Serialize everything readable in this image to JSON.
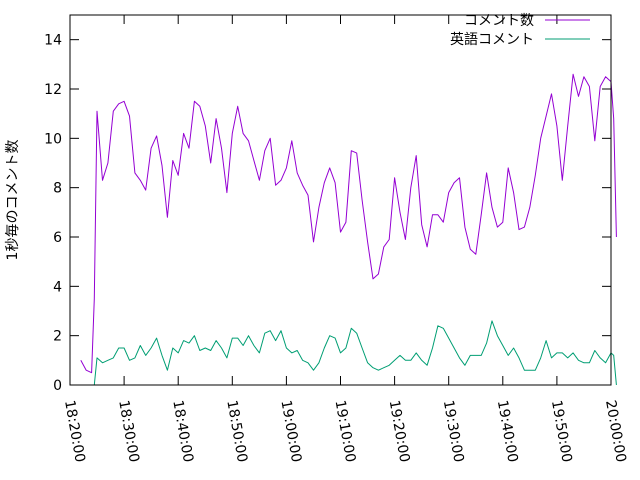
{
  "chart_data": {
    "type": "line",
    "title": "",
    "xlabel": "",
    "ylabel": "1秒毎のコメント数",
    "xlim": [
      "18:20:00",
      "20:00:00"
    ],
    "ylim": [
      0,
      15
    ],
    "xticks": [
      "18:20:00",
      "18:30:00",
      "18:40:00",
      "18:50:00",
      "19:00:00",
      "19:10:00",
      "19:20:00",
      "19:30:00",
      "19:40:00",
      "19:50:00",
      "20:00:00"
    ],
    "yticks": [
      "0",
      "2",
      "4",
      "6",
      "8",
      "10",
      "12",
      "14"
    ],
    "legend_position": "top-right",
    "grid": false,
    "series": [
      {
        "name": "コメント数",
        "color": "#9400d3",
        "points": [
          [
            "18:22:00",
            1.0
          ],
          [
            "18:23:00",
            0.6
          ],
          [
            "18:24:00",
            0.5
          ],
          [
            "18:24:30",
            3.5
          ],
          [
            "18:25:00",
            11.1
          ],
          [
            "18:26:00",
            8.3
          ],
          [
            "18:27:00",
            9.0
          ],
          [
            "18:28:00",
            11.1
          ],
          [
            "18:29:00",
            11.4
          ],
          [
            "18:30:00",
            11.5
          ],
          [
            "18:31:00",
            10.9
          ],
          [
            "18:32:00",
            8.6
          ],
          [
            "18:33:00",
            8.3
          ],
          [
            "18:34:00",
            7.9
          ],
          [
            "18:35:00",
            9.6
          ],
          [
            "18:36:00",
            10.1
          ],
          [
            "18:37:00",
            8.9
          ],
          [
            "18:38:00",
            6.8
          ],
          [
            "18:39:00",
            9.1
          ],
          [
            "18:40:00",
            8.5
          ],
          [
            "18:41:00",
            10.2
          ],
          [
            "18:42:00",
            9.6
          ],
          [
            "18:43:00",
            11.5
          ],
          [
            "18:44:00",
            11.3
          ],
          [
            "18:45:00",
            10.5
          ],
          [
            "18:46:00",
            9.0
          ],
          [
            "18:47:00",
            10.8
          ],
          [
            "18:48:00",
            9.6
          ],
          [
            "18:49:00",
            7.8
          ],
          [
            "18:50:00",
            10.2
          ],
          [
            "18:51:00",
            11.3
          ],
          [
            "18:52:00",
            10.2
          ],
          [
            "18:53:00",
            9.9
          ],
          [
            "18:54:00",
            9.1
          ],
          [
            "18:55:00",
            8.3
          ],
          [
            "18:56:00",
            9.5
          ],
          [
            "18:57:00",
            10.0
          ],
          [
            "18:58:00",
            8.1
          ],
          [
            "18:59:00",
            8.3
          ],
          [
            "19:00:00",
            8.8
          ],
          [
            "19:01:00",
            9.9
          ],
          [
            "19:02:00",
            8.6
          ],
          [
            "19:03:00",
            8.1
          ],
          [
            "19:04:00",
            7.7
          ],
          [
            "19:05:00",
            5.8
          ],
          [
            "19:06:00",
            7.2
          ],
          [
            "19:07:00",
            8.2
          ],
          [
            "19:08:00",
            8.8
          ],
          [
            "19:09:00",
            8.2
          ],
          [
            "19:10:00",
            6.2
          ],
          [
            "19:11:00",
            6.6
          ],
          [
            "19:12:00",
            9.5
          ],
          [
            "19:13:00",
            9.4
          ],
          [
            "19:14:00",
            7.5
          ],
          [
            "19:15:00",
            5.8
          ],
          [
            "19:16:00",
            4.3
          ],
          [
            "19:17:00",
            4.5
          ],
          [
            "19:18:00",
            5.6
          ],
          [
            "19:19:00",
            5.9
          ],
          [
            "19:20:00",
            8.4
          ],
          [
            "19:21:00",
            7.0
          ],
          [
            "19:22:00",
            5.9
          ],
          [
            "19:23:00",
            8.0
          ],
          [
            "19:24:00",
            9.3
          ],
          [
            "19:25:00",
            6.5
          ],
          [
            "19:26:00",
            5.6
          ],
          [
            "19:27:00",
            6.9
          ],
          [
            "19:28:00",
            6.9
          ],
          [
            "19:29:00",
            6.6
          ],
          [
            "19:30:00",
            7.8
          ],
          [
            "19:31:00",
            8.2
          ],
          [
            "19:32:00",
            8.4
          ],
          [
            "19:33:00",
            6.4
          ],
          [
            "19:34:00",
            5.5
          ],
          [
            "19:35:00",
            5.3
          ],
          [
            "19:36:00",
            6.9
          ],
          [
            "19:37:00",
            8.6
          ],
          [
            "19:38:00",
            7.2
          ],
          [
            "19:39:00",
            6.4
          ],
          [
            "19:40:00",
            6.6
          ],
          [
            "19:41:00",
            8.8
          ],
          [
            "19:42:00",
            7.8
          ],
          [
            "19:43:00",
            6.3
          ],
          [
            "19:44:00",
            6.4
          ],
          [
            "19:45:00",
            7.2
          ],
          [
            "19:46:00",
            8.5
          ],
          [
            "19:47:00",
            10.0
          ],
          [
            "19:48:00",
            10.9
          ],
          [
            "19:49:00",
            11.8
          ],
          [
            "19:50:00",
            10.5
          ],
          [
            "19:51:00",
            8.3
          ],
          [
            "19:52:00",
            10.5
          ],
          [
            "19:53:00",
            12.6
          ],
          [
            "19:54:00",
            11.7
          ],
          [
            "19:55:00",
            12.5
          ],
          [
            "19:56:00",
            12.1
          ],
          [
            "19:57:00",
            9.9
          ],
          [
            "19:58:00",
            12.1
          ],
          [
            "19:59:00",
            12.5
          ],
          [
            "20:00:00",
            12.3
          ],
          [
            "20:00:30",
            10.8
          ],
          [
            "20:01:00",
            6.0
          ]
        ]
      },
      {
        "name": "英語コメント",
        "color": "#009e73",
        "points": [
          [
            "18:24:30",
            0.0
          ],
          [
            "18:25:00",
            1.1
          ],
          [
            "18:26:00",
            0.9
          ],
          [
            "18:27:00",
            1.0
          ],
          [
            "18:28:00",
            1.1
          ],
          [
            "18:29:00",
            1.5
          ],
          [
            "18:30:00",
            1.5
          ],
          [
            "18:31:00",
            1.0
          ],
          [
            "18:32:00",
            1.1
          ],
          [
            "18:33:00",
            1.6
          ],
          [
            "18:34:00",
            1.2
          ],
          [
            "18:35:00",
            1.5
          ],
          [
            "18:36:00",
            1.9
          ],
          [
            "18:37:00",
            1.2
          ],
          [
            "18:38:00",
            0.6
          ],
          [
            "18:39:00",
            1.5
          ],
          [
            "18:40:00",
            1.3
          ],
          [
            "18:41:00",
            1.8
          ],
          [
            "18:42:00",
            1.7
          ],
          [
            "18:43:00",
            2.0
          ],
          [
            "18:44:00",
            1.4
          ],
          [
            "18:45:00",
            1.5
          ],
          [
            "18:46:00",
            1.4
          ],
          [
            "18:47:00",
            1.8
          ],
          [
            "18:48:00",
            1.5
          ],
          [
            "18:49:00",
            1.1
          ],
          [
            "18:50:00",
            1.9
          ],
          [
            "18:51:00",
            1.9
          ],
          [
            "18:52:00",
            1.6
          ],
          [
            "18:53:00",
            2.0
          ],
          [
            "18:54:00",
            1.6
          ],
          [
            "18:55:00",
            1.3
          ],
          [
            "18:56:00",
            2.1
          ],
          [
            "18:57:00",
            2.2
          ],
          [
            "18:58:00",
            1.8
          ],
          [
            "18:59:00",
            2.2
          ],
          [
            "19:00:00",
            1.5
          ],
          [
            "19:01:00",
            1.3
          ],
          [
            "19:02:00",
            1.4
          ],
          [
            "19:03:00",
            1.0
          ],
          [
            "19:04:00",
            0.9
          ],
          [
            "19:05:00",
            0.6
          ],
          [
            "19:06:00",
            0.9
          ],
          [
            "19:07:00",
            1.5
          ],
          [
            "19:08:00",
            2.0
          ],
          [
            "19:09:00",
            1.9
          ],
          [
            "19:10:00",
            1.3
          ],
          [
            "19:11:00",
            1.5
          ],
          [
            "19:12:00",
            2.3
          ],
          [
            "19:13:00",
            2.1
          ],
          [
            "19:14:00",
            1.5
          ],
          [
            "19:15:00",
            0.9
          ],
          [
            "19:16:00",
            0.7
          ],
          [
            "19:17:00",
            0.6
          ],
          [
            "19:18:00",
            0.7
          ],
          [
            "19:19:00",
            0.8
          ],
          [
            "19:20:00",
            1.0
          ],
          [
            "19:21:00",
            1.2
          ],
          [
            "19:22:00",
            1.0
          ],
          [
            "19:23:00",
            1.0
          ],
          [
            "19:24:00",
            1.3
          ],
          [
            "19:25:00",
            1.0
          ],
          [
            "19:26:00",
            0.8
          ],
          [
            "19:27:00",
            1.5
          ],
          [
            "19:28:00",
            2.4
          ],
          [
            "19:29:00",
            2.3
          ],
          [
            "19:30:00",
            1.9
          ],
          [
            "19:31:00",
            1.5
          ],
          [
            "19:32:00",
            1.1
          ],
          [
            "19:33:00",
            0.8
          ],
          [
            "19:34:00",
            1.2
          ],
          [
            "19:35:00",
            1.2
          ],
          [
            "19:36:00",
            1.2
          ],
          [
            "19:37:00",
            1.7
          ],
          [
            "19:38:00",
            2.6
          ],
          [
            "19:39:00",
            2.0
          ],
          [
            "19:40:00",
            1.6
          ],
          [
            "19:41:00",
            1.2
          ],
          [
            "19:42:00",
            1.5
          ],
          [
            "19:43:00",
            1.1
          ],
          [
            "19:44:00",
            0.6
          ],
          [
            "19:45:00",
            0.6
          ],
          [
            "19:46:00",
            0.6
          ],
          [
            "19:47:00",
            1.1
          ],
          [
            "19:48:00",
            1.8
          ],
          [
            "19:49:00",
            1.1
          ],
          [
            "19:50:00",
            1.3
          ],
          [
            "19:51:00",
            1.3
          ],
          [
            "19:52:00",
            1.1
          ],
          [
            "19:53:00",
            1.3
          ],
          [
            "19:54:00",
            1.0
          ],
          [
            "19:55:00",
            0.9
          ],
          [
            "19:56:00",
            0.9
          ],
          [
            "19:57:00",
            1.4
          ],
          [
            "19:58:00",
            1.1
          ],
          [
            "19:59:00",
            0.9
          ],
          [
            "20:00:00",
            1.3
          ],
          [
            "20:00:30",
            1.2
          ],
          [
            "20:01:00",
            0.0
          ]
        ]
      }
    ]
  }
}
